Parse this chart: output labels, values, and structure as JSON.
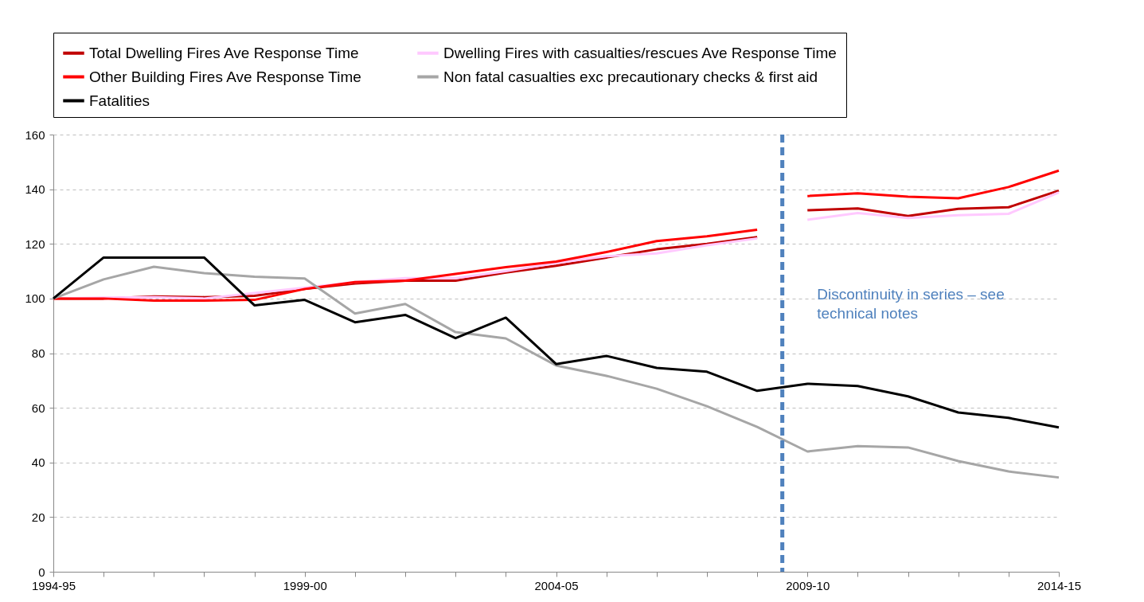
{
  "chart_data": {
    "type": "line",
    "categories": [
      "1994-95",
      null,
      null,
      null,
      null,
      "1999-00",
      null,
      null,
      null,
      null,
      "2004-05",
      null,
      null,
      null,
      null,
      "2009-10",
      null,
      null,
      null,
      null,
      "2014-15"
    ],
    "series": [
      {
        "name": "Total Dwelling Fires Ave Response Time",
        "color": "#c00000",
        "values": [
          100,
          100,
          100.8,
          100.5,
          101,
          103.5,
          105.5,
          106.5,
          106.5,
          109.5,
          112,
          115,
          118,
          120,
          122.5,
          null,
          null,
          null,
          null,
          null,
          null
        ]
      },
      {
        "name": "Dwelling Fires with casualties/rescues Ave Response Time",
        "color": "#ffc9ff",
        "values": [
          100,
          100.3,
          100.5,
          100,
          102,
          104,
          106,
          107.5,
          107.5,
          110,
          113,
          115.5,
          116.5,
          119.5,
          122,
          null,
          null,
          null,
          null,
          null,
          null
        ]
      },
      {
        "name": "Other Building Fires Ave Response Time",
        "color": "#ff0000",
        "values": [
          100,
          100,
          99.2,
          99.2,
          99.5,
          103.5,
          106,
          106.5,
          109,
          111.5,
          113.5,
          117,
          121,
          122.8,
          125.2,
          null,
          null,
          null,
          null,
          null,
          null
        ]
      },
      {
        "name": "Non fatal casualties exc precautionary checks & first aid",
        "color": "#a6a6a6",
        "values": [
          100,
          107,
          111.6,
          109.3,
          108,
          107.3,
          94.5,
          98,
          87.7,
          85.4,
          75.5,
          71.7,
          67,
          60.6,
          53,
          44,
          46,
          45.5,
          40.5,
          36.7,
          34.5
        ]
      },
      {
        "name": "Fatalities",
        "color": "#000000",
        "values": [
          100,
          115,
          115,
          115,
          97.5,
          99.5,
          91.3,
          94,
          85.5,
          93,
          76,
          79,
          74.6,
          73.2,
          66.2,
          68.8,
          68,
          64.2,
          58.3,
          56.3,
          52.8
        ]
      },
      {
        "color": "#c00000",
        "values": [
          null,
          null,
          null,
          null,
          null,
          null,
          null,
          null,
          null,
          null,
          null,
          null,
          null,
          null,
          null,
          132.3,
          133,
          130.2,
          132.8,
          133.4,
          139.5
        ]
      },
      {
        "color": "#ffc9ff",
        "values": [
          null,
          null,
          null,
          null,
          null,
          null,
          null,
          null,
          null,
          null,
          null,
          null,
          null,
          null,
          null,
          128.8,
          131.3,
          129.5,
          130.5,
          131,
          138.8
        ]
      },
      {
        "color": "#ff0000",
        "values": [
          null,
          null,
          null,
          null,
          null,
          null,
          null,
          null,
          null,
          null,
          null,
          null,
          null,
          null,
          null,
          137.5,
          138.5,
          137.3,
          136.7,
          140.8,
          146.8
        ]
      }
    ],
    "ylim": [
      0,
      160
    ],
    "yticks": [
      0,
      20,
      40,
      60,
      80,
      100,
      120,
      140,
      160
    ],
    "grid": "y",
    "ref_lines": [
      {
        "axis": "x",
        "value": "2009-10",
        "label": "Discontinuity in series – see technical notes",
        "color": "#4f81bd",
        "line_style": "dashed"
      }
    ],
    "legend": "top",
    "line_style": "solid",
    "marker": "none"
  }
}
